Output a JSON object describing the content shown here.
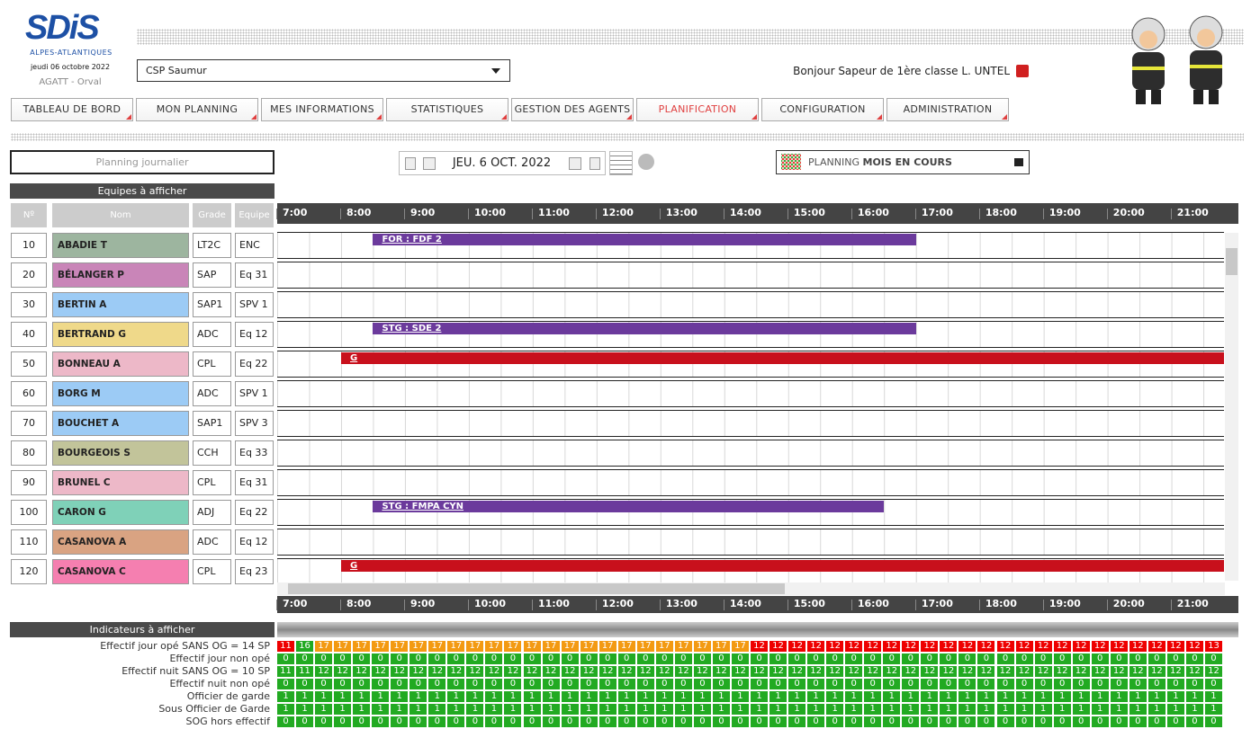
{
  "header": {
    "logo": "SDiS",
    "logo_subtitle": "ALPES-ATLANTIQUES",
    "date": "jeudi 06 octobre 2022",
    "app": "AGATT - Orval",
    "center_select": "CSP Saumur",
    "greeting": "Bonjour Sapeur de 1ère classe L. UNTEL"
  },
  "nav": [
    {
      "label": "TABLEAU DE BORD"
    },
    {
      "label": "MON PLANNING"
    },
    {
      "label": "MES INFORMATIONS"
    },
    {
      "label": "STATISTIQUES"
    },
    {
      "label": "GESTION DES AGENTS"
    },
    {
      "label": "PLANIFICATION",
      "active": true
    },
    {
      "label": "CONFIGURATION"
    },
    {
      "label": "ADMINISTRATION"
    }
  ],
  "toolbar": {
    "view_select": "Planning journalier",
    "date": "JEU. 6 OCT. 2022",
    "planning_prefix": "PLANNING",
    "planning_mode": "MOIS EN COURS"
  },
  "agents": {
    "title": "Equipes à afficher",
    "columns": [
      "Nº",
      "Nom",
      "Grade",
      "Equipe"
    ],
    "rows": [
      {
        "num": "10",
        "name": "ABADIE T",
        "grade": "LT2C",
        "team": "ENC",
        "color": "#9db59f",
        "events": [
          {
            "label": "FOR : FDF 2",
            "start": 8.5,
            "end": 17,
            "color": "#6b3a9c"
          }
        ]
      },
      {
        "num": "20",
        "name": "BÉLANGER P",
        "grade": "SAP",
        "team": "Eq 31",
        "color": "#c985b8"
      },
      {
        "num": "30",
        "name": "BERTIN A",
        "grade": "SAP1",
        "team": "SPV 1",
        "color": "#9ccbf5"
      },
      {
        "num": "40",
        "name": "BERTRAND G",
        "grade": "ADC",
        "team": "Eq 12",
        "color": "#efd98a",
        "events": [
          {
            "label": "STG : SDE 2",
            "start": 8.5,
            "end": 17,
            "color": "#6b3a9c"
          }
        ]
      },
      {
        "num": "50",
        "name": "BONNEAU A",
        "grade": "CPL",
        "team": "Eq 22",
        "color": "#edb8c8",
        "events": [
          {
            "label": "G",
            "start": 8,
            "end": 24,
            "color": "#c8101c"
          }
        ]
      },
      {
        "num": "60",
        "name": "BORG M",
        "grade": "ADC",
        "team": "SPV 1",
        "color": "#9ccbf5"
      },
      {
        "num": "70",
        "name": "BOUCHET A",
        "grade": "SAP1",
        "team": "SPV 3",
        "color": "#9ccbf5"
      },
      {
        "num": "80",
        "name": "BOURGEOIS S",
        "grade": "CCH",
        "team": "Eq 33",
        "color": "#c2c49a"
      },
      {
        "num": "90",
        "name": "BRUNEL C",
        "grade": "CPL",
        "team": "Eq 31",
        "color": "#edb8c8"
      },
      {
        "num": "100",
        "name": "CARON G",
        "grade": "ADJ",
        "team": "Eq 22",
        "color": "#7fd1b8",
        "events": [
          {
            "label": "STG : FMPA CYN",
            "start": 8.5,
            "end": 16.5,
            "color": "#6b3a9c"
          }
        ]
      },
      {
        "num": "110",
        "name": "CASANOVA A",
        "grade": "ADC",
        "team": "Eq 12",
        "color": "#d9a382"
      },
      {
        "num": "120",
        "name": "CASANOVA C",
        "grade": "CPL",
        "team": "Eq 23",
        "color": "#f57fb0",
        "events": [
          {
            "label": "G",
            "start": 8,
            "end": 24,
            "color": "#c8101c"
          }
        ]
      }
    ]
  },
  "timeline": {
    "xlim": [
      7,
      21.82
    ],
    "hours": [
      {
        "value": 7,
        "label": "7:00"
      },
      {
        "value": 8,
        "label": "8:00"
      },
      {
        "value": 9,
        "label": "9:00"
      },
      {
        "value": 10,
        "label": "10:00"
      },
      {
        "value": 11,
        "label": "11:00"
      },
      {
        "value": 12,
        "label": "12:00"
      },
      {
        "value": 13,
        "label": "13:00"
      },
      {
        "value": 14,
        "label": "14:00"
      },
      {
        "value": 15,
        "label": "15:00"
      },
      {
        "value": 16,
        "label": "16:00"
      },
      {
        "value": 17,
        "label": "17:00"
      },
      {
        "value": 18,
        "label": "18:00"
      },
      {
        "value": 19,
        "label": "19:00"
      },
      {
        "value": 20,
        "label": "20:00"
      },
      {
        "value": 21,
        "label": "21:00"
      }
    ]
  },
  "indicators": {
    "title": "Indicateurs à afficher",
    "rows": [
      {
        "label": "Effectif jour opé SANS OG = 14 SP",
        "values": [
          11,
          16,
          17,
          17,
          17,
          17,
          17,
          17,
          17,
          17,
          17,
          17,
          17,
          17,
          17,
          17,
          17,
          17,
          17,
          17,
          17,
          17,
          17,
          17,
          17,
          12,
          12,
          12,
          12,
          12,
          12,
          12,
          12,
          12,
          12,
          12,
          12,
          12,
          12,
          12,
          12,
          12,
          12,
          12,
          12,
          12,
          12,
          12,
          12,
          13
        ],
        "cell_colors": [
          "#e00",
          "#2a2",
          "#f39a12",
          "#f39a12",
          "#f39a12",
          "#f39a12",
          "#f39a12",
          "#f39a12",
          "#f39a12",
          "#f39a12",
          "#f39a12",
          "#f39a12",
          "#f39a12",
          "#f39a12",
          "#f39a12",
          "#f39a12",
          "#f39a12",
          "#f39a12",
          "#f39a12",
          "#f39a12",
          "#f39a12",
          "#f39a12",
          "#f39a12",
          "#f39a12",
          "#f39a12",
          "#e00",
          "#e00",
          "#e00",
          "#e00",
          "#e00",
          "#e00",
          "#e00",
          "#e00",
          "#e00",
          "#e00",
          "#e00",
          "#e00",
          "#e00",
          "#e00",
          "#e00",
          "#e00",
          "#e00",
          "#e00",
          "#e00",
          "#e00",
          "#e00",
          "#e00",
          "#e00",
          "#e00",
          "#e00"
        ]
      },
      {
        "label": "Effectif jour non opé",
        "color": "#2a2",
        "values": [
          0,
          0,
          0,
          0,
          0,
          0,
          0,
          0,
          0,
          0,
          0,
          0,
          0,
          0,
          0,
          0,
          0,
          0,
          0,
          0,
          0,
          0,
          0,
          0,
          0,
          0,
          0,
          0,
          0,
          0,
          0,
          0,
          0,
          0,
          0,
          0,
          0,
          0,
          0,
          0,
          0,
          0,
          0,
          0,
          0,
          0,
          0,
          0,
          0,
          0
        ]
      },
      {
        "label": "Effectif nuit SANS OG = 10 SP",
        "color": "#2a2",
        "values": [
          11,
          11,
          12,
          12,
          12,
          12,
          12,
          12,
          12,
          12,
          12,
          12,
          12,
          12,
          12,
          12,
          12,
          12,
          12,
          12,
          12,
          12,
          12,
          12,
          12,
          12,
          12,
          12,
          12,
          12,
          12,
          12,
          12,
          12,
          12,
          12,
          12,
          12,
          12,
          12,
          12,
          12,
          12,
          12,
          12,
          12,
          12,
          12,
          12,
          12
        ]
      },
      {
        "label": "Effectif nuit non opé",
        "color": "#2a2",
        "values": [
          0,
          0,
          0,
          0,
          0,
          0,
          0,
          0,
          0,
          0,
          0,
          0,
          0,
          0,
          0,
          0,
          0,
          0,
          0,
          0,
          0,
          0,
          0,
          0,
          0,
          0,
          0,
          0,
          0,
          0,
          0,
          0,
          0,
          0,
          0,
          0,
          0,
          0,
          0,
          0,
          0,
          0,
          0,
          0,
          0,
          0,
          0,
          0,
          0,
          0
        ]
      },
      {
        "label": "Officier de garde",
        "color": "#2a2",
        "values": [
          1,
          1,
          1,
          1,
          1,
          1,
          1,
          1,
          1,
          1,
          1,
          1,
          1,
          1,
          1,
          1,
          1,
          1,
          1,
          1,
          1,
          1,
          1,
          1,
          1,
          1,
          1,
          1,
          1,
          1,
          1,
          1,
          1,
          1,
          1,
          1,
          1,
          1,
          1,
          1,
          1,
          1,
          1,
          1,
          1,
          1,
          1,
          1,
          1,
          1
        ]
      },
      {
        "label": "Sous Officier de Garde",
        "color": "#2a2",
        "values": [
          1,
          1,
          1,
          1,
          1,
          1,
          1,
          1,
          1,
          1,
          1,
          1,
          1,
          1,
          1,
          1,
          1,
          1,
          1,
          1,
          1,
          1,
          1,
          1,
          1,
          1,
          1,
          1,
          1,
          1,
          1,
          1,
          1,
          1,
          1,
          1,
          1,
          1,
          1,
          1,
          1,
          1,
          1,
          1,
          1,
          1,
          1,
          1,
          1,
          1
        ]
      },
      {
        "label": "SOG hors effectif",
        "color": "#2a2",
        "values": [
          0,
          0,
          0,
          0,
          0,
          0,
          0,
          0,
          0,
          0,
          0,
          0,
          0,
          0,
          0,
          0,
          0,
          0,
          0,
          0,
          0,
          0,
          0,
          0,
          0,
          0,
          0,
          0,
          0,
          0,
          0,
          0,
          0,
          0,
          0,
          0,
          0,
          0,
          0,
          0,
          0,
          0,
          0,
          0,
          0,
          0,
          0,
          0,
          0,
          0
        ]
      }
    ]
  }
}
